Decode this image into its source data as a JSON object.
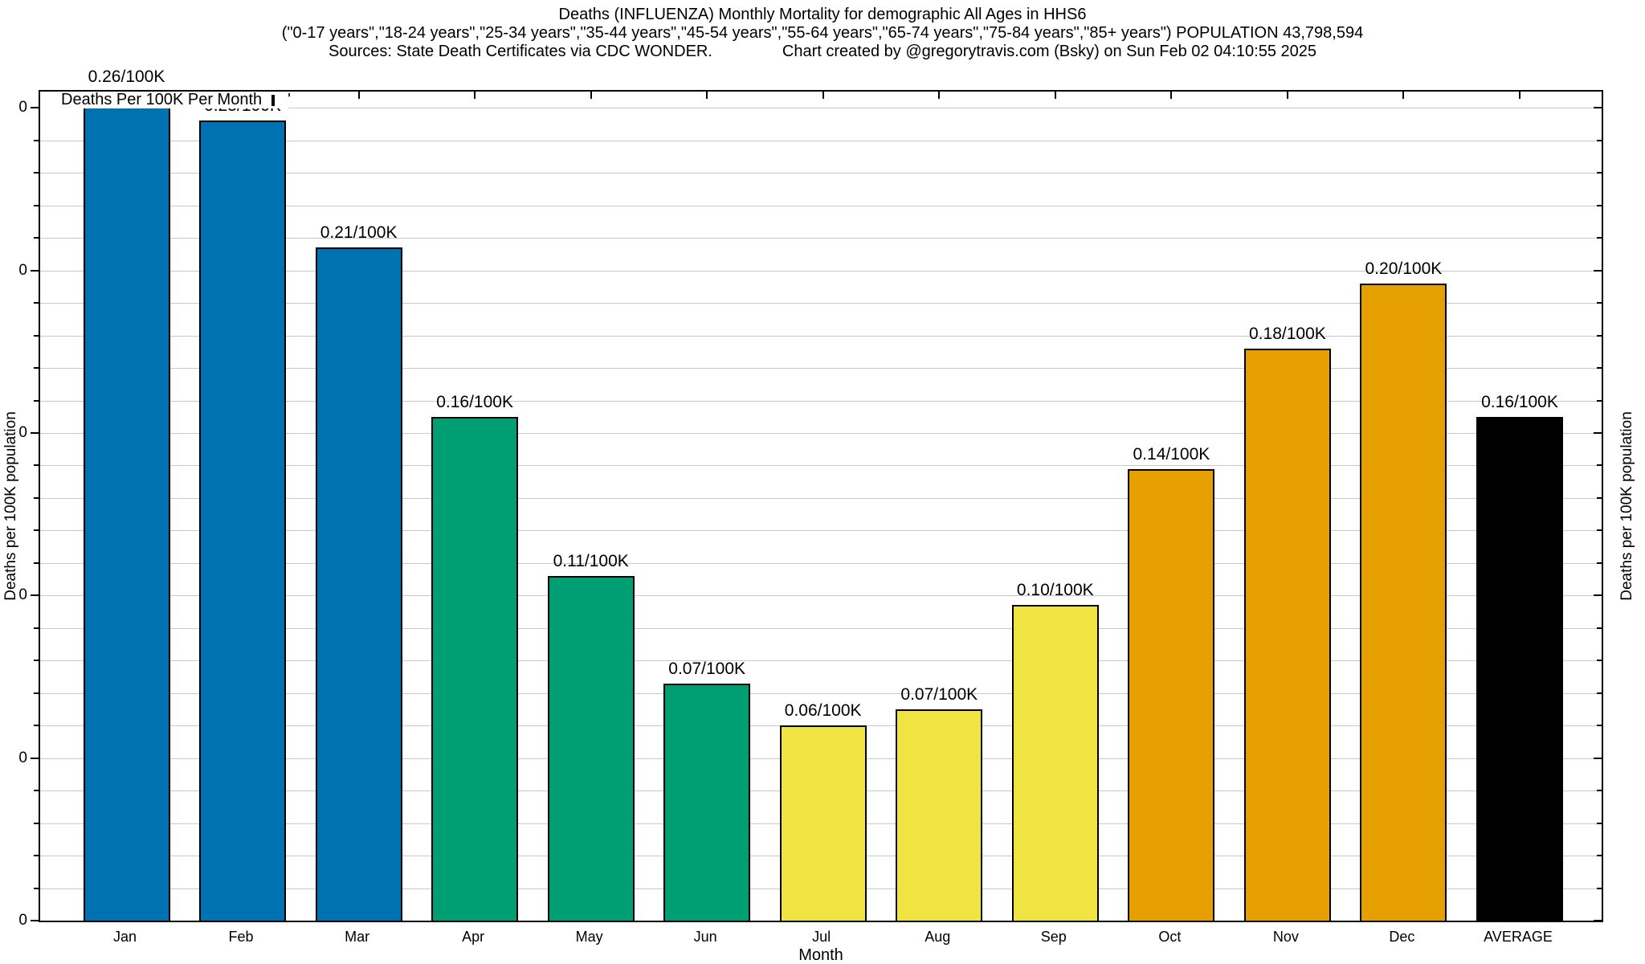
{
  "title": {
    "line1": "Deaths (INFLUENZA) Monthly Mortality for demographic All Ages in HHS6",
    "line2": "(\"0-17 years\",\"18-24 years\",\"25-34 years\",\"35-44 years\",\"45-54 years\",\"55-64 years\",\"65-74 years\",\"75-84 years\",\"85+ years\") POPULATION 43,798,594",
    "line3_left": "Sources: State Death Certificates via CDC WONDER.",
    "line3_right": "Chart created by @gregorytravis.com (Bsky) on Sun Feb 02 04:10:55 2025"
  },
  "legend": {
    "label": "Deaths Per 100K Per Month",
    "swatch_color": "#0072B2",
    "artifact_mark": "'"
  },
  "axes": {
    "x_label": "Month",
    "y_label_left": "Deaths per 100K population",
    "y_label_right": "Deaths per 100K population",
    "y_tick_label": "0"
  },
  "chart_data": {
    "type": "bar",
    "title": "Deaths (INFLUENZA) Monthly Mortality for demographic All Ages in HHS6",
    "xlabel": "Month",
    "ylabel": "Deaths per 100K population",
    "categories": [
      "Jan",
      "Feb",
      "Mar",
      "Apr",
      "May",
      "Jun",
      "Jul",
      "Aug",
      "Sep",
      "Oct",
      "Nov",
      "Dec",
      "AVERAGE"
    ],
    "values": [
      0.255,
      0.246,
      0.207,
      0.155,
      0.106,
      0.073,
      0.06,
      0.065,
      0.097,
      0.139,
      0.176,
      0.196,
      0.155
    ],
    "bar_labels": [
      "0.26/100K",
      "0.25/100K",
      "0.21/100K",
      "0.16/100K",
      "0.11/100K",
      "0.07/100K",
      "0.06/100K",
      "0.07/100K",
      "0.10/100K",
      "0.14/100K",
      "0.18/100K",
      "0.20/100K",
      "0.16/100K"
    ],
    "bar_colors": [
      "#0072B2",
      "#0072B2",
      "#0072B2",
      "#009E73",
      "#009E73",
      "#009E73",
      "#F0E442",
      "#F0E442",
      "#F0E442",
      "#E69F00",
      "#E69F00",
      "#E69F00",
      "#000000"
    ],
    "ylim": [
      0,
      0.255
    ],
    "y_minor_step": 0.01,
    "y_major_step": 0.05,
    "y_tick_label_text": "0",
    "grid": true,
    "legend_position": "top-left",
    "legend_label": "Deaths Per 100K Per Month"
  },
  "colors": {
    "grid": "#c8c8c8",
    "axis": "#000000",
    "background": "#ffffff"
  }
}
